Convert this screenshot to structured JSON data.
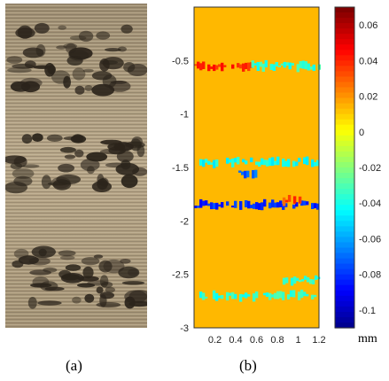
{
  "panels": {
    "a_label": "(a)",
    "b_label": "(b)"
  },
  "photo": {
    "description_icon": "machined-surface-photo",
    "base_color": "#b3a185",
    "dark_color": "#2b241b"
  },
  "chart_data": {
    "type": "heatmap",
    "xlabel": "",
    "ylabel": "",
    "xlim": [
      0,
      1.2
    ],
    "ylim": [
      -3,
      0
    ],
    "x_ticks": [
      0.2,
      0.4,
      0.6,
      0.8,
      1,
      1.2
    ],
    "x_tick_labels": [
      "0.2",
      "0.4",
      "0.6",
      "0.8",
      "1",
      "1.2"
    ],
    "y_ticks": [
      -0.5,
      -1,
      -1.5,
      -2,
      -2.5,
      -3
    ],
    "y_tick_labels": [
      "-0.5",
      "-1",
      "-1.5",
      "-2",
      "-2.5",
      "-3"
    ],
    "colorbar": {
      "range": [
        -0.11,
        0.07
      ],
      "ticks": [
        0.06,
        0.04,
        0.02,
        0,
        -0.02,
        -0.04,
        -0.06,
        -0.08,
        -0.1
      ],
      "tick_labels": [
        "0.06",
        "0.04",
        "0.02",
        "0",
        "-0.02",
        "-0.04",
        "-0.06",
        "-0.08",
        "-0.1"
      ],
      "unit": "mm",
      "colormap": "jet"
    },
    "background_value": 0.015,
    "features": [
      {
        "y": -0.55,
        "x_range": [
          0.0,
          0.55
        ],
        "value": 0.04
      },
      {
        "y": -0.55,
        "x_range": [
          0.55,
          1.2
        ],
        "value": -0.035
      },
      {
        "y": -1.45,
        "x_range": [
          0.0,
          1.2
        ],
        "value": -0.04
      },
      {
        "y": -1.55,
        "x_range": [
          0.4,
          0.65
        ],
        "value": -0.07
      },
      {
        "y": -1.85,
        "x_range": [
          0.0,
          1.2
        ],
        "value": -0.08
      },
      {
        "y": -1.8,
        "x_range": [
          0.85,
          1.05
        ],
        "value": 0.035
      },
      {
        "y": -2.55,
        "x_range": [
          0.85,
          1.2
        ],
        "value": -0.035
      },
      {
        "y": -2.7,
        "x_range": [
          0.05,
          1.2
        ],
        "value": -0.035
      }
    ]
  }
}
